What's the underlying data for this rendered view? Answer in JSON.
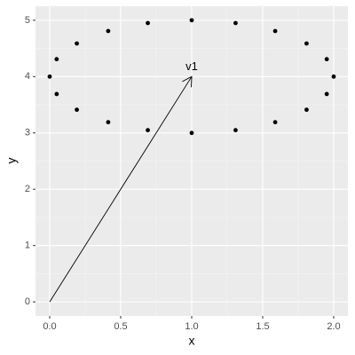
{
  "chart_data": {
    "type": "scatter",
    "x_label": "x",
    "y_label": "y",
    "x": [
      0,
      0.049,
      0.049,
      0.191,
      0.191,
      0.412,
      0.412,
      0.691,
      0.691,
      1,
      1,
      1.309,
      1.309,
      1.588,
      1.588,
      1.809,
      1.809,
      1.951,
      1.951,
      2
    ],
    "y": [
      4,
      4.309,
      3.691,
      4.588,
      3.412,
      4.809,
      3.191,
      4.951,
      3.049,
      5,
      3,
      4.951,
      3.049,
      4.809,
      3.191,
      4.588,
      3.412,
      4.309,
      3.691,
      4
    ],
    "color": "#000000",
    "arrows": [
      {
        "label": "v1",
        "x": [
          0,
          1
        ],
        "y": [
          0,
          4
        ]
      }
    ],
    "xlim": [
      -0.1,
      2.1
    ],
    "ylim": [
      -0.25,
      5.25
    ],
    "xticks": [
      {
        "value": 0,
        "label": "0.0"
      },
      0.5,
      {
        "value": 1,
        "label": "1.0"
      },
      1.5,
      {
        "value": 2,
        "label": "2.0"
      }
    ],
    "yticks": [
      0,
      1,
      2,
      3,
      4,
      5
    ],
    "grid": true
  }
}
